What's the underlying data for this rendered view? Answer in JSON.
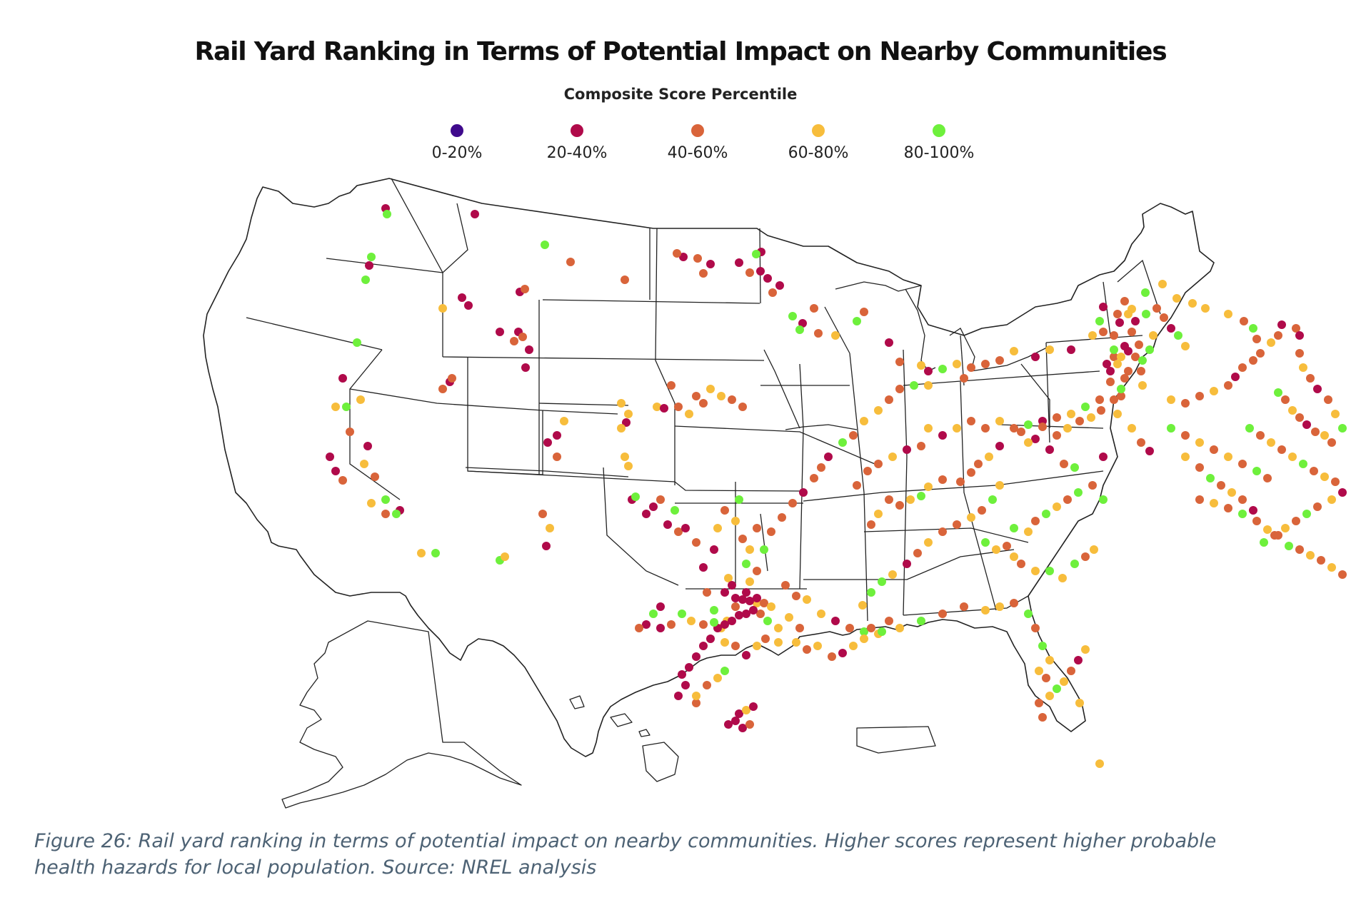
{
  "title": "Rail Yard Ranking in Terms of Potential Impact on Nearby Communities",
  "legend": {
    "title": "Composite Score Percentile",
    "items": [
      {
        "label": "0-20%",
        "color": "#3f0a8c"
      },
      {
        "label": "20-40%",
        "color": "#b00a4a"
      },
      {
        "label": "40-60%",
        "color": "#d9643a"
      },
      {
        "label": "60-80%",
        "color": "#f7bd3c"
      },
      {
        "label": "80-100%",
        "color": "#6ef03c"
      }
    ]
  },
  "map": {
    "region": "United States (lower 48, Alaska, Hawaii, Puerto Rico)",
    "outline_color": "#222222",
    "land_fill": "#ffffff"
  },
  "caption_line1": "Figure 26: Rail yard ranking in terms of potential impact on nearby communities. Higher scores represent higher probable",
  "caption_line2": "health hazards for local population. Source: NREL analysis"
}
